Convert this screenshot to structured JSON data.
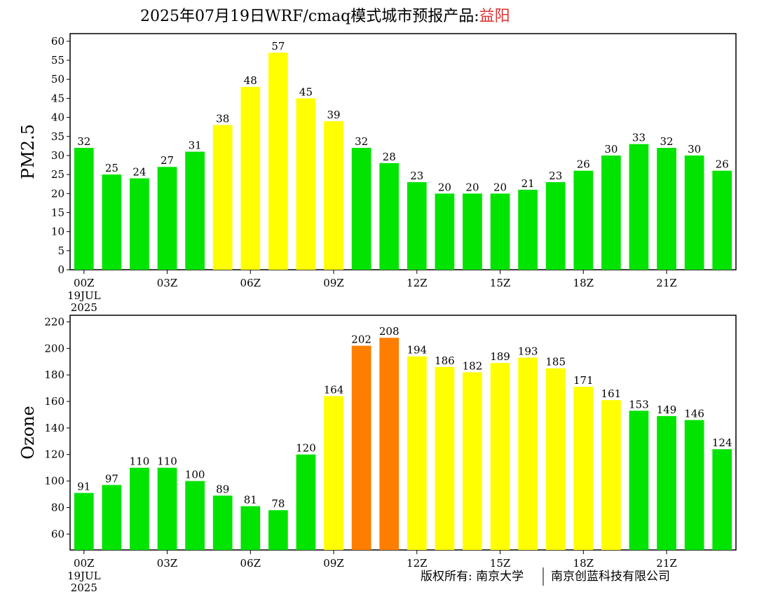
{
  "title": {
    "main": "2025年07月19日WRF/cmaq模式城市预报产品:",
    "city": "益阳"
  },
  "footer": {
    "copyright": "版权所有: 南京大学",
    "company": "南京创蓝科技有限公司"
  },
  "colors": {
    "good": "#00e400",
    "moderate": "#ffff00",
    "unhealthy_sensitive": "#ff7e00",
    "city": "#e03030"
  },
  "chart_data": [
    {
      "type": "bar",
      "ylabel": "PM2.5",
      "ylim": [
        0,
        62
      ],
      "yticks": [
        0,
        5,
        10,
        15,
        20,
        25,
        30,
        35,
        40,
        45,
        50,
        55,
        60
      ],
      "x_tick_labels": [
        {
          "hour": 0,
          "label": "00Z"
        },
        {
          "hour": 3,
          "label": "03Z"
        },
        {
          "hour": 6,
          "label": "06Z"
        },
        {
          "hour": 9,
          "label": "09Z"
        },
        {
          "hour": 12,
          "label": "12Z"
        },
        {
          "hour": 15,
          "label": "15Z"
        },
        {
          "hour": 18,
          "label": "18Z"
        },
        {
          "hour": 21,
          "label": "21Z"
        }
      ],
      "date_label": [
        "19JUL",
        "2025"
      ],
      "values": [
        32,
        25,
        24,
        27,
        31,
        38,
        48,
        57,
        45,
        39,
        32,
        28,
        23,
        20,
        20,
        20,
        21,
        23,
        26,
        30,
        33,
        32,
        30,
        26
      ],
      "bar_colors": [
        "#00e400",
        "#00e400",
        "#00e400",
        "#00e400",
        "#00e400",
        "#ffff00",
        "#ffff00",
        "#ffff00",
        "#ffff00",
        "#ffff00",
        "#00e400",
        "#00e400",
        "#00e400",
        "#00e400",
        "#00e400",
        "#00e400",
        "#00e400",
        "#00e400",
        "#00e400",
        "#00e400",
        "#00e400",
        "#00e400",
        "#00e400",
        "#00e400"
      ]
    },
    {
      "type": "bar",
      "ylabel": "Ozone",
      "ylim": [
        48,
        225
      ],
      "yticks": [
        60,
        80,
        100,
        120,
        140,
        160,
        180,
        200,
        220
      ],
      "x_tick_labels": [
        {
          "hour": 0,
          "label": "00Z"
        },
        {
          "hour": 3,
          "label": "03Z"
        },
        {
          "hour": 6,
          "label": "06Z"
        },
        {
          "hour": 9,
          "label": "09Z"
        },
        {
          "hour": 12,
          "label": "12Z"
        },
        {
          "hour": 15,
          "label": "15Z"
        },
        {
          "hour": 18,
          "label": "18Z"
        },
        {
          "hour": 21,
          "label": "21Z"
        }
      ],
      "date_label": [
        "19JUL",
        "2025"
      ],
      "values": [
        91,
        97,
        110,
        110,
        100,
        89,
        81,
        78,
        120,
        164,
        202,
        208,
        194,
        186,
        182,
        189,
        193,
        185,
        171,
        161,
        153,
        149,
        146,
        124
      ],
      "bar_colors": [
        "#00e400",
        "#00e400",
        "#00e400",
        "#00e400",
        "#00e400",
        "#00e400",
        "#00e400",
        "#00e400",
        "#00e400",
        "#ffff00",
        "#ff7e00",
        "#ff7e00",
        "#ffff00",
        "#ffff00",
        "#ffff00",
        "#ffff00",
        "#ffff00",
        "#ffff00",
        "#ffff00",
        "#ffff00",
        "#00e400",
        "#00e400",
        "#00e400",
        "#00e400"
      ]
    }
  ]
}
